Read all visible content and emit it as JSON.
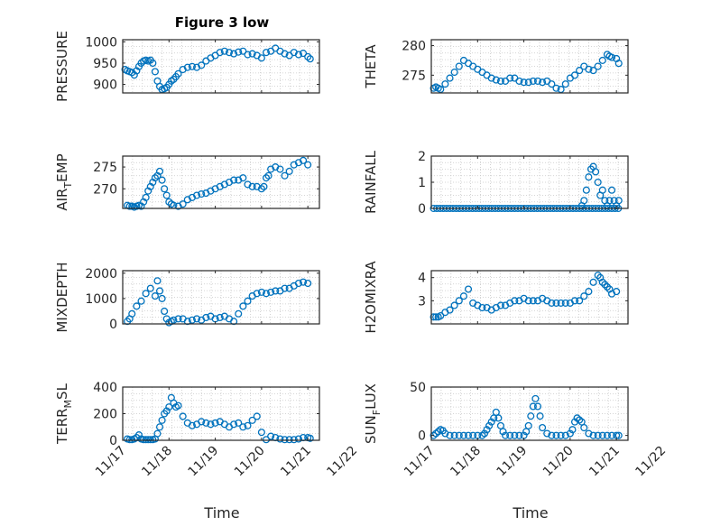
{
  "title": "Figure 3 low",
  "colors": {
    "marker": "#0072BD",
    "axes": "#262626",
    "grid": "#c8c8c8",
    "background": "#ffffff"
  },
  "chart_data": [
    {
      "type": "scatter",
      "ylabel": "PRESSURE",
      "ylim": [
        880,
        1005
      ],
      "yticks": [
        900,
        950,
        1000
      ],
      "xlim": [
        0,
        4.25
      ],
      "x": [
        0.05,
        0.1,
        0.15,
        0.2,
        0.25,
        0.3,
        0.35,
        0.4,
        0.45,
        0.5,
        0.55,
        0.6,
        0.65,
        0.7,
        0.75,
        0.8,
        0.85,
        0.9,
        0.95,
        1.0,
        1.05,
        1.1,
        1.15,
        1.2,
        1.3,
        1.4,
        1.5,
        1.6,
        1.7,
        1.8,
        1.9,
        2.0,
        2.1,
        2.2,
        2.3,
        2.4,
        2.5,
        2.6,
        2.7,
        2.8,
        2.9,
        3.0,
        3.1,
        3.2,
        3.3,
        3.4,
        3.5,
        3.6,
        3.7,
        3.8,
        3.9,
        4.0,
        4.05
      ],
      "y": [
        935,
        932,
        930,
        928,
        922,
        932,
        942,
        950,
        955,
        957,
        955,
        957,
        950,
        930,
        908,
        895,
        888,
        890,
        893,
        900,
        908,
        912,
        918,
        925,
        935,
        940,
        942,
        940,
        945,
        955,
        962,
        968,
        975,
        978,
        975,
        972,
        976,
        978,
        970,
        972,
        968,
        962,
        975,
        978,
        985,
        978,
        972,
        968,
        975,
        970,
        973,
        965,
        960
      ]
    },
    {
      "type": "scatter",
      "ylabel": "THETA",
      "ylim": [
        272,
        281
      ],
      "yticks": [
        275,
        280
      ],
      "xlim": [
        0,
        4.25
      ],
      "x": [
        0.05,
        0.1,
        0.15,
        0.2,
        0.3,
        0.4,
        0.5,
        0.6,
        0.7,
        0.8,
        0.9,
        1.0,
        1.1,
        1.2,
        1.3,
        1.4,
        1.5,
        1.6,
        1.7,
        1.8,
        1.9,
        2.0,
        2.1,
        2.2,
        2.3,
        2.4,
        2.5,
        2.6,
        2.7,
        2.8,
        2.9,
        3.0,
        3.1,
        3.2,
        3.3,
        3.4,
        3.5,
        3.6,
        3.7,
        3.8,
        3.85,
        3.9,
        4.0,
        4.05
      ],
      "y": [
        272.8,
        273.0,
        272.8,
        272.6,
        273.5,
        274.5,
        275.5,
        276.5,
        277.5,
        277.0,
        276.5,
        276.0,
        275.5,
        275.0,
        274.5,
        274.2,
        274.0,
        274.0,
        274.5,
        274.5,
        274.0,
        273.8,
        273.8,
        274.0,
        274.0,
        273.8,
        274.0,
        273.5,
        272.8,
        272.6,
        273.5,
        274.5,
        275.0,
        275.8,
        276.5,
        276.0,
        275.8,
        276.5,
        277.5,
        278.5,
        278.2,
        278.0,
        277.8,
        277.0
      ]
    },
    {
      "type": "scatter",
      "ylabel": "AIR_TEMP",
      "ylim": [
        265.5,
        277.5
      ],
      "yticks": [
        270,
        275
      ],
      "xlim": [
        0,
        4.25
      ],
      "x": [
        0.1,
        0.15,
        0.2,
        0.25,
        0.3,
        0.35,
        0.4,
        0.45,
        0.5,
        0.55,
        0.6,
        0.65,
        0.7,
        0.75,
        0.8,
        0.85,
        0.9,
        0.95,
        1.0,
        1.05,
        1.1,
        1.2,
        1.3,
        1.4,
        1.5,
        1.6,
        1.7,
        1.8,
        1.9,
        2.0,
        2.1,
        2.2,
        2.3,
        2.4,
        2.5,
        2.6,
        2.7,
        2.8,
        2.9,
        3.0,
        3.05,
        3.1,
        3.15,
        3.2,
        3.3,
        3.4,
        3.5,
        3.6,
        3.7,
        3.8,
        3.9,
        4.0
      ],
      "y": [
        266.2,
        266.0,
        266.0,
        265.8,
        266.0,
        266.2,
        266.0,
        267.0,
        268.0,
        269.5,
        270.5,
        271.5,
        272.5,
        273.0,
        274.0,
        272.0,
        270.0,
        268.5,
        267.0,
        266.5,
        266.2,
        266.0,
        266.5,
        267.5,
        268.0,
        268.5,
        268.8,
        269.0,
        269.5,
        270.0,
        270.5,
        271.0,
        271.5,
        272.0,
        272.0,
        272.5,
        271.0,
        270.5,
        270.5,
        270.0,
        270.5,
        272.5,
        273.0,
        274.5,
        275.0,
        274.5,
        273.0,
        274.0,
        275.5,
        276.0,
        276.5,
        275.5
      ]
    },
    {
      "type": "scatter",
      "ylabel": "RAINFALL",
      "ylim": [
        0,
        2
      ],
      "yticks": [
        0,
        1,
        2
      ],
      "xlim": [
        0,
        4.25
      ],
      "x": [
        0.05,
        0.12,
        0.19,
        0.26,
        0.33,
        0.4,
        0.47,
        0.54,
        0.61,
        0.68,
        0.75,
        0.82,
        0.89,
        0.96,
        1.03,
        1.1,
        1.17,
        1.24,
        1.31,
        1.38,
        1.45,
        1.52,
        1.59,
        1.66,
        1.73,
        1.8,
        1.87,
        1.94,
        2.01,
        2.08,
        2.15,
        2.22,
        2.29,
        2.36,
        2.43,
        2.5,
        2.57,
        2.64,
        2.71,
        2.78,
        2.85,
        2.92,
        2.99,
        3.06,
        3.13,
        3.2,
        3.27,
        3.34,
        3.41,
        3.48,
        3.55,
        3.62,
        3.69,
        3.76,
        3.83,
        3.9,
        3.97,
        4.04,
        3.3,
        3.35,
        3.4,
        3.45,
        3.5,
        3.55,
        3.6,
        3.7,
        3.75,
        3.8,
        3.85,
        3.9,
        3.95,
        4.0,
        4.05,
        3.25,
        3.65
      ],
      "y": [
        0,
        0,
        0,
        0,
        0,
        0,
        0,
        0,
        0,
        0,
        0,
        0,
        0,
        0,
        0,
        0,
        0,
        0,
        0,
        0,
        0,
        0,
        0,
        0,
        0,
        0,
        0,
        0,
        0,
        0,
        0,
        0,
        0,
        0,
        0,
        0,
        0,
        0,
        0,
        0,
        0,
        0,
        0,
        0,
        0,
        0,
        0,
        0,
        0,
        0,
        0,
        0,
        0,
        0,
        0,
        0,
        0,
        0,
        0.3,
        0.7,
        1.2,
        1.5,
        1.6,
        1.4,
        1.0,
        0.7,
        0.3,
        0.1,
        0.3,
        0.7,
        0.3,
        0.1,
        0.3,
        0.1,
        0.5
      ]
    },
    {
      "type": "scatter",
      "ylabel": "MIXDEPTH",
      "ylim": [
        0,
        2100
      ],
      "yticks": [
        0,
        1000,
        2000
      ],
      "xlim": [
        0,
        4.25
      ],
      "x": [
        0.1,
        0.15,
        0.2,
        0.3,
        0.4,
        0.5,
        0.6,
        0.7,
        0.75,
        0.8,
        0.85,
        0.9,
        0.95,
        1.0,
        1.05,
        1.1,
        1.2,
        1.3,
        1.4,
        1.5,
        1.6,
        1.7,
        1.8,
        1.9,
        2.0,
        2.1,
        2.2,
        2.3,
        2.4,
        2.5,
        2.6,
        2.7,
        2.8,
        2.9,
        3.0,
        3.1,
        3.2,
        3.3,
        3.4,
        3.5,
        3.6,
        3.7,
        3.8,
        3.9,
        4.0
      ],
      "y": [
        100,
        200,
        400,
        700,
        900,
        1200,
        1400,
        1100,
        1700,
        1300,
        1000,
        500,
        200,
        50,
        100,
        150,
        200,
        200,
        100,
        150,
        200,
        150,
        250,
        300,
        200,
        250,
        300,
        200,
        100,
        400,
        700,
        900,
        1100,
        1200,
        1250,
        1200,
        1250,
        1300,
        1300,
        1400,
        1400,
        1500,
        1600,
        1650,
        1600
      ]
    },
    {
      "type": "scatter",
      "ylabel": "H2OMIXRA",
      "ylim": [
        2,
        4.3
      ],
      "yticks": [
        3,
        4
      ],
      "xlim": [
        0,
        4.25
      ],
      "x": [
        0.05,
        0.1,
        0.15,
        0.2,
        0.3,
        0.4,
        0.5,
        0.6,
        0.7,
        0.8,
        0.9,
        1.0,
        1.1,
        1.2,
        1.3,
        1.4,
        1.5,
        1.6,
        1.7,
        1.8,
        1.9,
        2.0,
        2.1,
        2.2,
        2.3,
        2.4,
        2.5,
        2.6,
        2.7,
        2.8,
        2.9,
        3.0,
        3.1,
        3.2,
        3.3,
        3.4,
        3.5,
        3.6,
        3.65,
        3.7,
        3.75,
        3.8,
        3.85,
        3.9,
        4.0
      ],
      "y": [
        2.3,
        2.3,
        2.3,
        2.35,
        2.5,
        2.6,
        2.8,
        3.0,
        3.2,
        3.5,
        2.9,
        2.8,
        2.7,
        2.7,
        2.6,
        2.7,
        2.8,
        2.8,
        2.9,
        3.0,
        3.0,
        3.1,
        3.0,
        3.0,
        3.0,
        3.1,
        3.0,
        2.9,
        2.9,
        2.9,
        2.9,
        2.9,
        3.0,
        3.0,
        3.2,
        3.4,
        3.8,
        4.1,
        4.0,
        3.8,
        3.7,
        3.6,
        3.5,
        3.3,
        3.4
      ]
    },
    {
      "type": "scatter",
      "ylabel": "TERR_MSL",
      "ylim": [
        0,
        400
      ],
      "yticks": [
        0,
        200,
        400
      ],
      "xlim": [
        0,
        4.25
      ],
      "x": [
        0.1,
        0.15,
        0.2,
        0.25,
        0.3,
        0.35,
        0.4,
        0.45,
        0.5,
        0.55,
        0.6,
        0.65,
        0.7,
        0.75,
        0.8,
        0.85,
        0.9,
        0.95,
        1.0,
        1.05,
        1.1,
        1.15,
        1.2,
        1.3,
        1.4,
        1.5,
        1.6,
        1.7,
        1.8,
        1.9,
        2.0,
        2.1,
        2.2,
        2.3,
        2.4,
        2.5,
        2.6,
        2.7,
        2.8,
        2.9,
        3.0,
        3.1,
        3.2,
        3.3,
        3.4,
        3.5,
        3.6,
        3.7,
        3.8,
        3.9,
        4.0,
        4.05
      ],
      "y": [
        10,
        5,
        5,
        10,
        20,
        40,
        10,
        5,
        5,
        5,
        5,
        5,
        10,
        50,
        100,
        150,
        200,
        220,
        250,
        320,
        280,
        250,
        260,
        180,
        130,
        110,
        120,
        140,
        130,
        120,
        130,
        140,
        120,
        100,
        120,
        130,
        100,
        110,
        150,
        180,
        60,
        5,
        30,
        20,
        10,
        5,
        5,
        5,
        10,
        20,
        20,
        15
      ]
    },
    {
      "type": "scatter",
      "ylabel": "SUN_FLUX",
      "ylim": [
        -5,
        50
      ],
      "yticks": [
        0,
        50
      ],
      "xlim": [
        0,
        4.25
      ],
      "x": [
        0.05,
        0.1,
        0.15,
        0.2,
        0.25,
        0.3,
        0.4,
        0.5,
        0.6,
        0.7,
        0.8,
        0.9,
        1.0,
        1.1,
        1.15,
        1.2,
        1.25,
        1.3,
        1.35,
        1.4,
        1.45,
        1.5,
        1.55,
        1.6,
        1.7,
        1.8,
        1.9,
        2.0,
        2.05,
        2.1,
        2.15,
        2.2,
        2.25,
        2.3,
        2.35,
        2.4,
        2.5,
        2.6,
        2.7,
        2.8,
        2.9,
        3.0,
        3.05,
        3.1,
        3.15,
        3.2,
        3.25,
        3.3,
        3.4,
        3.5,
        3.6,
        3.7,
        3.8,
        3.9,
        4.0,
        4.05
      ],
      "y": [
        0,
        2,
        4,
        6,
        5,
        2,
        0,
        0,
        0,
        0,
        0,
        0,
        0,
        0,
        2,
        6,
        10,
        14,
        18,
        24,
        18,
        10,
        4,
        0,
        0,
        0,
        0,
        0,
        4,
        10,
        20,
        30,
        38,
        30,
        20,
        8,
        2,
        0,
        0,
        0,
        0,
        2,
        6,
        14,
        18,
        16,
        14,
        8,
        2,
        0,
        0,
        0,
        0,
        0,
        0,
        0
      ]
    }
  ],
  "x_ticklabels": [
    "11/17",
    "11/18",
    "11/19",
    "11/20",
    "11/21",
    "11/22"
  ],
  "xlabels": [
    "Time",
    "Time"
  ]
}
